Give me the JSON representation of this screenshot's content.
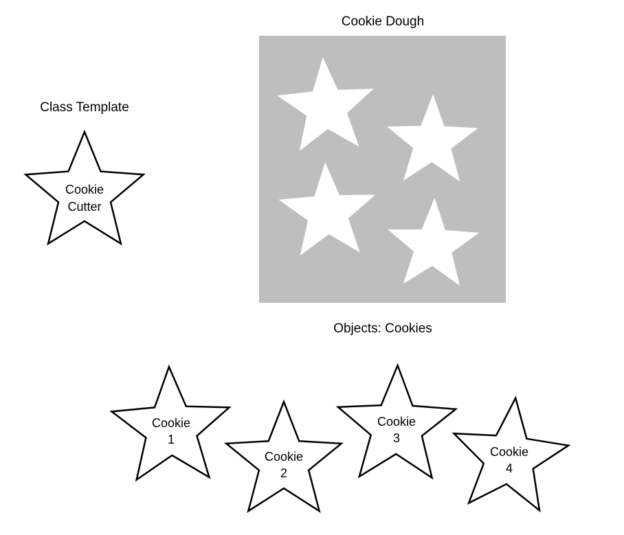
{
  "colors": {
    "dough": "#bebebe",
    "cutout": "#ffffff",
    "outline": "#000000"
  },
  "template": {
    "caption": "Class Template",
    "label_line1": "Cookie",
    "label_line2": "Cutter"
  },
  "dough": {
    "caption": "Cookie Dough",
    "cutout_count": 4
  },
  "objects": {
    "caption": "Objects: Cookies",
    "cookies": [
      {
        "line1": "Cookie",
        "line2": "1"
      },
      {
        "line1": "Cookie",
        "line2": "2"
      },
      {
        "line1": "Cookie",
        "line2": "3"
      },
      {
        "line1": "Cookie",
        "line2": "4"
      }
    ]
  }
}
